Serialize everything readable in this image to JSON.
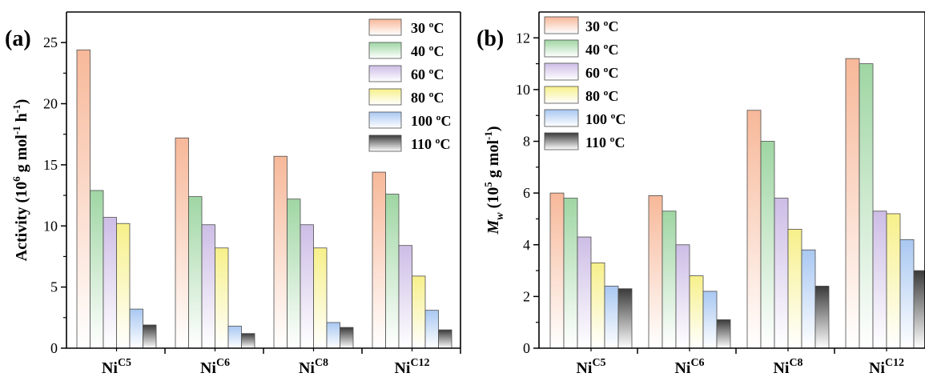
{
  "chart_data": [
    {
      "type": "bar",
      "panel_label": "(a)",
      "ylabel": "Activity (10^6 g mol^-1 h^-1)",
      "ylabel_parts": {
        "base": "Activity (10",
        "exp1": "6",
        "mid": " g mol",
        "exp2": "-1",
        "mid2": " h",
        "exp3": "-1",
        "end": ")"
      },
      "ylim": [
        0,
        27.5
      ],
      "yticks": [
        0,
        5,
        10,
        15,
        20,
        25
      ],
      "categories": [
        {
          "base": "Ni",
          "sup": "C5"
        },
        {
          "base": "Ni",
          "sup": "C6"
        },
        {
          "base": "Ni",
          "sup": "C8"
        },
        {
          "base": "Ni",
          "sup": "C12"
        }
      ],
      "legend_position": "top-right",
      "series": [
        {
          "name": "30 ºC",
          "values": [
            24.4,
            17.2,
            15.7,
            14.4
          ]
        },
        {
          "name": "40 ºC",
          "values": [
            12.9,
            12.4,
            12.2,
            12.6
          ]
        },
        {
          "name": "60 ºC",
          "values": [
            10.7,
            10.1,
            10.1,
            8.4
          ]
        },
        {
          "name": "80 ºC",
          "values": [
            10.2,
            8.2,
            8.2,
            5.9
          ]
        },
        {
          "name": "100 ºC",
          "values": [
            3.2,
            1.8,
            2.1,
            3.1
          ]
        },
        {
          "name": "110 ºC",
          "values": [
            1.9,
            1.2,
            1.7,
            1.5
          ]
        }
      ]
    },
    {
      "type": "bar",
      "panel_label": "(b)",
      "ylabel": "Mw (10^5 g mol^-1)",
      "ylabel_parts": {
        "italic": "M",
        "sub": "w",
        "base": " (10",
        "exp1": "5",
        "mid": " g mol",
        "exp2": "-1",
        "end": ")"
      },
      "ylim": [
        0,
        13
      ],
      "yticks": [
        0,
        2,
        4,
        6,
        8,
        10,
        12
      ],
      "categories": [
        {
          "base": "Ni",
          "sup": "C5"
        },
        {
          "base": "Ni",
          "sup": "C6"
        },
        {
          "base": "Ni",
          "sup": "C8"
        },
        {
          "base": "Ni",
          "sup": "C12"
        }
      ],
      "legend_position": "top-left",
      "series": [
        {
          "name": "30 ºC",
          "values": [
            6.0,
            5.9,
            9.2,
            11.2
          ]
        },
        {
          "name": "40 ºC",
          "values": [
            5.8,
            5.3,
            8.0,
            11.0
          ]
        },
        {
          "name": "60 ºC",
          "values": [
            4.3,
            4.0,
            5.8,
            5.3
          ]
        },
        {
          "name": "80 ºC",
          "values": [
            3.3,
            2.8,
            4.6,
            5.2
          ]
        },
        {
          "name": "100 ºC",
          "values": [
            2.4,
            2.2,
            3.8,
            4.2
          ]
        },
        {
          "name": "110 ºC",
          "values": [
            2.3,
            1.1,
            2.4,
            3.0
          ]
        }
      ]
    }
  ],
  "series_colors": [
    "#f7b899",
    "#9fd6a3",
    "#cdbde6",
    "#f7f08a",
    "#a9c8f2",
    "#3a3a3a"
  ]
}
